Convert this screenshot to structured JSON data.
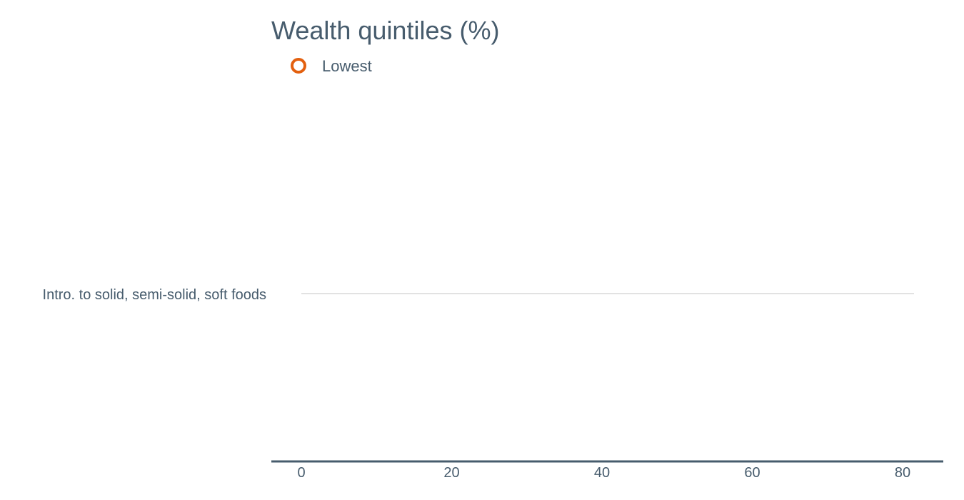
{
  "chart_data": {
    "type": "scatter",
    "title": "Wealth quintiles (%)",
    "categories": [
      "Intro. to solid, semi-solid, soft foods"
    ],
    "series": [
      {
        "name": "Lowest",
        "values": [
          null
        ],
        "color": "#e3600f",
        "marker": "open-circle"
      }
    ],
    "xlim": [
      0,
      80
    ],
    "x_ticks": [
      "0",
      "20",
      "40",
      "60",
      "80"
    ],
    "xlabel": "",
    "ylabel": "",
    "grid": true,
    "legend_position": "top-left"
  }
}
